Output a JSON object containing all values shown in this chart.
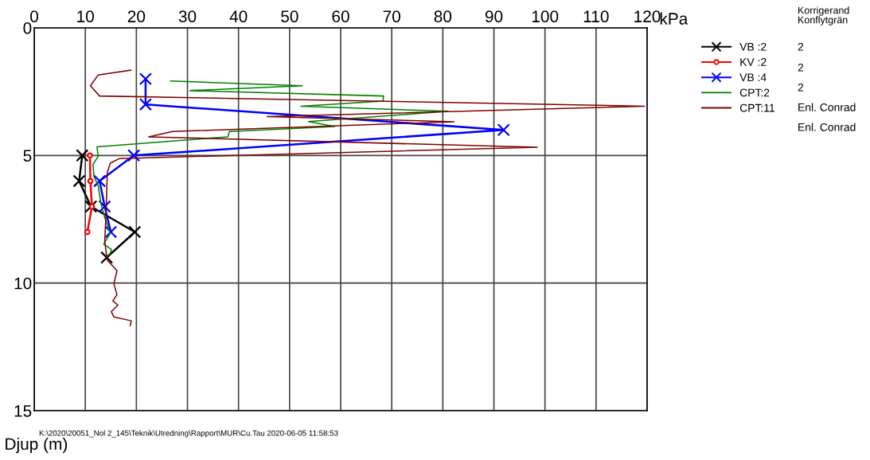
{
  "chart_data": {
    "type": "line",
    "xlabel": "kPa",
    "ylabel": "Djup (m)",
    "xlim": [
      0,
      120
    ],
    "xticks": [
      0,
      10,
      20,
      30,
      40,
      50,
      60,
      70,
      80,
      90,
      100,
      110,
      120
    ],
    "ylim": [
      15,
      0
    ],
    "yticks": [
      0,
      5,
      10,
      15
    ],
    "grid": true,
    "legend": "right",
    "line_style": "solid",
    "series": [
      {
        "name": "VB :2",
        "color": "#000000",
        "marker": "cross",
        "x": [
          9.4,
          8.8,
          11.1,
          19.7,
          14.2
        ],
        "values": [
          5,
          6,
          7,
          8,
          9
        ]
      },
      {
        "name": "KV :2",
        "color": "#ff0000",
        "marker": "circle",
        "x": [
          10.9,
          11.0,
          11.3,
          10.4
        ],
        "values": [
          5,
          6,
          7,
          8
        ]
      },
      {
        "name": "VB :4",
        "color": "#0000ff",
        "marker": "cross",
        "x": [
          21.8,
          21.8,
          91.9,
          19.5,
          12.8,
          13.8,
          15.0
        ],
        "values": [
          2,
          3,
          4,
          5,
          6,
          7,
          8
        ]
      },
      {
        "name": "CPT:2",
        "color": "#008000",
        "marker": "none",
        "x": [
          26.7,
          52.5,
          30.5,
          68.4,
          68.3,
          52.2,
          81.0,
          53.7,
          58.8,
          38.2,
          37.9,
          12.3,
          12.5,
          11.5,
          11.7,
          12.5,
          13.1,
          13.8,
          14.9,
          13.6,
          15.1,
          14.9,
          14.3
        ],
        "values": [
          2.08,
          2.27,
          2.46,
          2.67,
          2.87,
          3.07,
          3.27,
          3.67,
          3.87,
          4.06,
          4.27,
          4.66,
          5.04,
          5.35,
          5.82,
          6.18,
          6.91,
          7.43,
          8.05,
          8.47,
          8.68,
          8.84,
          8.94
        ]
      },
      {
        "name": "CPT:11",
        "color": "#800000",
        "marker": "none",
        "x": [
          18.9,
          12.5,
          11.0,
          12.8,
          119.5,
          45.6,
          82.2,
          27.1,
          22.4,
          98.5,
          16.7,
          14.9,
          14.3,
          14.1,
          13.8,
          14.3,
          16.2,
          15.6,
          16.2,
          15.4,
          16.4,
          15.1,
          15.6,
          19.0,
          18.8
        ],
        "values": [
          1.66,
          1.85,
          2.27,
          2.67,
          3.07,
          3.48,
          3.68,
          4.06,
          4.27,
          4.68,
          5.12,
          5.3,
          5.67,
          7.12,
          8.37,
          9.1,
          9.51,
          10.03,
          10.45,
          10.7,
          10.86,
          11.12,
          11.33,
          11.48,
          11.67
        ]
      }
    ],
    "annotations": [
      "Korrigerand",
      "Konflytgrän",
      "2",
      "2",
      "2",
      "Enl. Conrad",
      "Enl. Conrad",
      "K:\\2020\\20051_Nol 2_145\\Teknik\\Utredning\\Rapport\\MUR\\Cu.Tau 2020-06-05 11:58:53"
    ]
  }
}
